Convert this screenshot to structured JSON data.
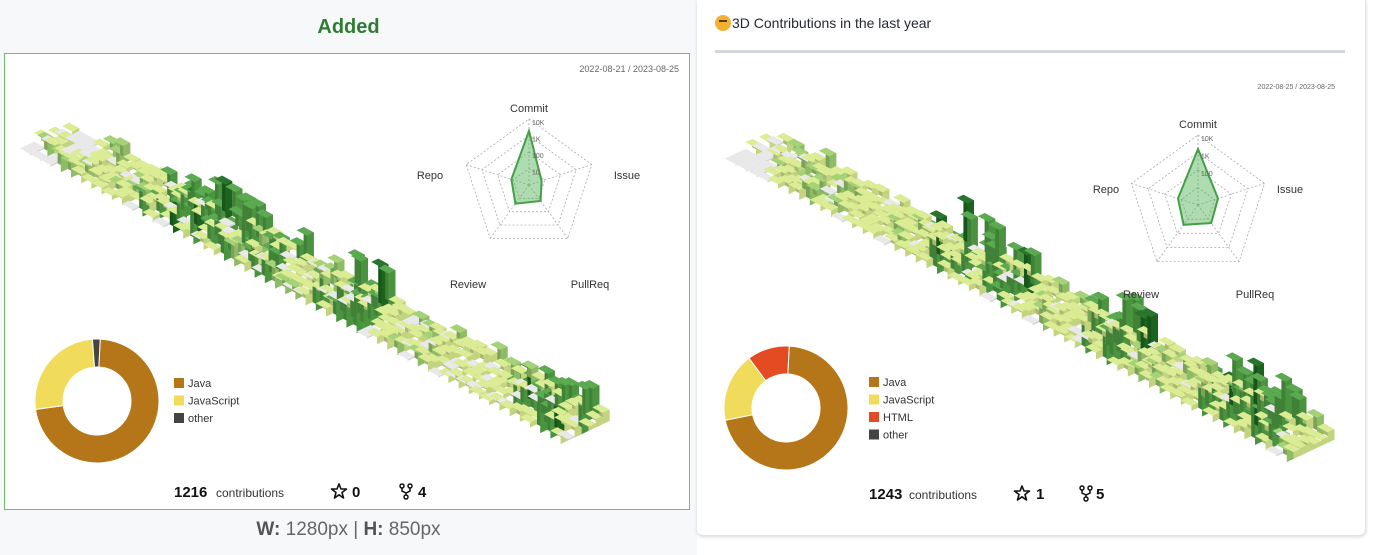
{
  "left": {
    "title": "Added",
    "size_caption": {
      "w_label": "W:",
      "w_value": " 1280px | ",
      "h_label": "H:",
      "h_value": " 850px"
    },
    "chart": {
      "date_range": "2022-08-21 / 2023-08-25",
      "radar": {
        "axes": [
          "Commit",
          "Issue",
          "PullReq",
          "Review",
          "Repo"
        ],
        "ticks": [
          "10K",
          "1K",
          "100",
          "10"
        ],
        "values": [
          0.82,
          0.2,
          0.3,
          0.35,
          0.28
        ]
      },
      "languages": [
        {
          "name": "Java",
          "percent": 72,
          "color": "#b5761a"
        },
        {
          "name": "JavaScript",
          "percent": 26,
          "color": "#f0dc5a"
        },
        {
          "name": "other",
          "percent": 2,
          "color": "#444444"
        }
      ],
      "contributions": "1216",
      "contributions_label": "contributions",
      "stars": "0",
      "forks": "4"
    }
  },
  "right": {
    "header": "3D Contributions in the last year",
    "chart": {
      "date_range": "2022-08-25 / 2023-08-25",
      "radar": {
        "axes": [
          "Commit",
          "Issue",
          "PullReq",
          "Review",
          "Repo"
        ],
        "ticks": [
          "10K",
          "1K",
          "100"
        ],
        "values": [
          0.8,
          0.3,
          0.32,
          0.35,
          0.3
        ]
      },
      "languages": [
        {
          "name": "Java",
          "percent": 71,
          "color": "#b5761a"
        },
        {
          "name": "JavaScript",
          "percent": 18,
          "color": "#f0dc5a"
        },
        {
          "name": "HTML",
          "percent": 11,
          "color": "#e44b23"
        },
        {
          "name": "other",
          "percent": 0,
          "color": "#444444"
        }
      ],
      "contributions": "1243",
      "contributions_label": "contributions",
      "stars": "1",
      "forks": "5"
    }
  },
  "colors": {
    "level0": "#e8e8e8",
    "level1": "#d9eb8f",
    "level2": "#9ed070",
    "level3": "#52a447",
    "level4": "#1e6e22",
    "accent": "#2e7d32"
  }
}
